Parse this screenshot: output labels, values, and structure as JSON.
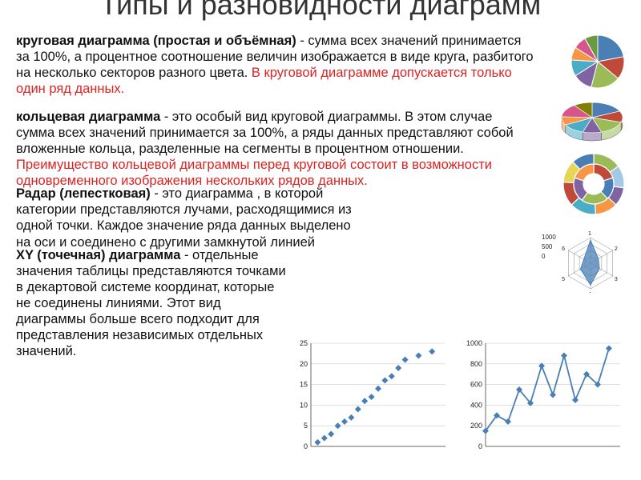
{
  "title": "Типы и разновидности диаграмм",
  "paragraphs": {
    "p1_bold": "круговая диаграмма (простая и объёмная)",
    "p1_body": " - сумма всех значений принимается за 100%, а процентное соотношение величин изображается в виде круга, разбитого на несколько секторов разного цвета. ",
    "p1_red": "В круговой диаграмме допускается только один ряд данных.",
    "p2_bold": "кольцевая диаграмма",
    "p2_body": " - это особый вид круговой диаграммы. В этом случае сумма всех значений принимается за 100%, а ряды данных представляют собой вложенные кольца, разделенные на сегменты в процентном отношении. ",
    "p2_red": "Преимущество кольцевой диаграммы перед круговой состоит в возможности одновременного изображения нескольких рядов данных.",
    "p3_bold": "Радар (лепестковая)",
    "p3_body": " - это диаграмма , в которой категории представляются лучами, расходящимися из одной точки. Каждое значение ряда данных выделено на оси и соединено с другими замкнутой линией",
    "p4_bold": "XY (точечная) диаграмма",
    "p4_body": " - отдельные значения таблицы представляются точками в декартовой системе координат, которые не соединены линиями. Этот вид диаграммы больше всего подходит для представления независимых отдельных значений."
  },
  "charts": {
    "pie1": {
      "type": "pie",
      "slices": [
        {
          "v": 22,
          "c": "#4a7fb6"
        },
        {
          "v": 14,
          "c": "#c04a3a"
        },
        {
          "v": 18,
          "c": "#9bbb59"
        },
        {
          "v": 12,
          "c": "#8064a2"
        },
        {
          "v": 10,
          "c": "#4bacc6"
        },
        {
          "v": 8,
          "c": "#f79646"
        },
        {
          "v": 8,
          "c": "#d6568c"
        },
        {
          "v": 8,
          "c": "#6a9a3f"
        }
      ],
      "bg": "#ffffff"
    },
    "pie3d": {
      "type": "pie-3d",
      "slices": [
        {
          "v": 18,
          "c": "#4a7fb6"
        },
        {
          "v": 12,
          "c": "#c04a3a"
        },
        {
          "v": 15,
          "c": "#9bbb59"
        },
        {
          "v": 10,
          "c": "#8064a2"
        },
        {
          "v": 12,
          "c": "#4bacc6"
        },
        {
          "v": 9,
          "c": "#f79646"
        },
        {
          "v": 14,
          "c": "#d6568c"
        },
        {
          "v": 10,
          "c": "#808000"
        }
      ],
      "side": "#555"
    },
    "donut": {
      "type": "donut",
      "outer": [
        {
          "v": 15,
          "c": "#9bbb59"
        },
        {
          "v": 12,
          "c": "#a3c9e6"
        },
        {
          "v": 10,
          "c": "#8064a2"
        },
        {
          "v": 12,
          "c": "#f79646"
        },
        {
          "v": 14,
          "c": "#4bacc6"
        },
        {
          "v": 13,
          "c": "#c04a3a"
        },
        {
          "v": 12,
          "c": "#e7d55a"
        },
        {
          "v": 12,
          "c": "#4a7fb6"
        }
      ],
      "inner": [
        {
          "v": 20,
          "c": "#c04a3a"
        },
        {
          "v": 18,
          "c": "#4a7fb6"
        },
        {
          "v": 22,
          "c": "#9bbb59"
        },
        {
          "v": 20,
          "c": "#8064a2"
        },
        {
          "v": 20,
          "c": "#f79646"
        }
      ]
    },
    "radar": {
      "type": "radar",
      "yticks": [
        "0",
        "500",
        "1000"
      ],
      "axes": 6,
      "fill": "#4a7fb6",
      "vals": [
        0.9,
        0.35,
        0.4,
        0.85,
        0.45,
        0.3
      ],
      "grid": "#888"
    },
    "scatter": {
      "type": "scatter",
      "xlim": [
        0,
        10
      ],
      "ylim": [
        0,
        25
      ],
      "yticks": [
        0,
        5,
        10,
        15,
        20,
        25
      ],
      "points": [
        [
          0.5,
          1
        ],
        [
          1,
          2
        ],
        [
          1.5,
          3
        ],
        [
          2,
          5
        ],
        [
          2.5,
          6
        ],
        [
          3,
          7
        ],
        [
          3.5,
          9
        ],
        [
          4,
          11
        ],
        [
          4.5,
          12
        ],
        [
          5,
          14
        ],
        [
          5.5,
          16
        ],
        [
          6,
          17
        ],
        [
          6.5,
          19
        ],
        [
          7,
          21
        ],
        [
          8,
          22
        ],
        [
          9,
          23
        ]
      ],
      "marker_color": "#4a7fb6",
      "grid_color": "#cccccc",
      "font_size": 9
    },
    "line": {
      "type": "line",
      "xlim": [
        0,
        12
      ],
      "ylim": [
        0,
        1000
      ],
      "yticks": [
        0,
        200,
        400,
        600,
        800,
        1000
      ],
      "points": [
        [
          0,
          150
        ],
        [
          1,
          300
        ],
        [
          2,
          240
        ],
        [
          3,
          550
        ],
        [
          4,
          420
        ],
        [
          5,
          780
        ],
        [
          6,
          500
        ],
        [
          7,
          880
        ],
        [
          8,
          450
        ],
        [
          9,
          700
        ],
        [
          10,
          600
        ],
        [
          11,
          950
        ]
      ],
      "line_color": "#4a7fb6",
      "marker_color": "#4a7fb6",
      "grid_color": "#cccccc",
      "font_size": 9
    }
  },
  "colors": {
    "text": "#111111",
    "red": "#dd2222",
    "bg": "#ffffff"
  }
}
